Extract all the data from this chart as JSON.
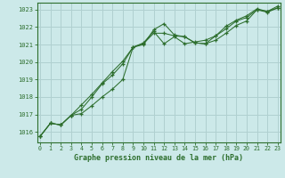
{
  "title": "Graphe pression niveau de la mer (hPa)",
  "background_color": "#cce9e9",
  "grid_color": "#b0d0d0",
  "line_color": "#2d6e2d",
  "x_ticks": [
    0,
    1,
    2,
    3,
    4,
    5,
    6,
    7,
    8,
    9,
    10,
    11,
    12,
    13,
    14,
    15,
    16,
    17,
    18,
    19,
    20,
    21,
    22,
    23
  ],
  "y_ticks": [
    1016,
    1017,
    1018,
    1019,
    1020,
    1021,
    1022,
    1023
  ],
  "ylim": [
    1015.4,
    1023.4
  ],
  "xlim": [
    -0.3,
    23.3
  ],
  "series": [
    [
      1015.75,
      1016.5,
      1016.4,
      1016.95,
      1017.05,
      1017.5,
      1018.0,
      1018.45,
      1019.0,
      1020.85,
      1021.0,
      1021.85,
      1022.2,
      1021.55,
      1021.45,
      1021.1,
      1021.05,
      1021.25,
      1021.65,
      1022.1,
      1022.35,
      1023.0,
      1022.85,
      1023.1
    ],
    [
      1015.75,
      1016.5,
      1016.4,
      1016.95,
      1017.3,
      1018.0,
      1018.75,
      1019.25,
      1019.9,
      1020.85,
      1021.05,
      1021.65,
      1021.65,
      1021.5,
      1021.45,
      1021.1,
      1021.05,
      1021.5,
      1021.9,
      1022.35,
      1022.55,
      1023.0,
      1022.9,
      1023.1
    ],
    [
      1015.75,
      1016.5,
      1016.4,
      1016.95,
      1017.55,
      1018.15,
      1018.8,
      1019.45,
      1020.05,
      1020.85,
      1021.1,
      1021.75,
      1021.05,
      1021.45,
      1021.05,
      1021.15,
      1021.25,
      1021.5,
      1022.05,
      1022.4,
      1022.65,
      1023.05,
      1022.9,
      1023.2
    ]
  ]
}
